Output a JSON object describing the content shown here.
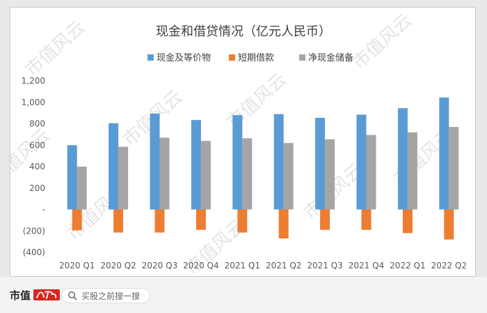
{
  "chart_data": {
    "type": "bar",
    "title": "现金和借贷情况（亿元人民币）",
    "categories": [
      "2020 Q1",
      "2020 Q2",
      "2020 Q3",
      "2020 Q4",
      "2021 Q1",
      "2021 Q2",
      "2021 Q3",
      "2021 Q4",
      "2022 Q1",
      "2022 Q2"
    ],
    "series": [
      {
        "name": "现金及等价物",
        "color": "#5b9bd5",
        "values": [
          600,
          805,
          895,
          835,
          880,
          890,
          855,
          885,
          945,
          1045
        ]
      },
      {
        "name": "短期借款",
        "color": "#ed7d31",
        "values": [
          -195,
          -215,
          -215,
          -190,
          -215,
          -270,
          -190,
          -190,
          -220,
          -280
        ]
      },
      {
        "name": "净现金储备",
        "color": "#a5a5a5",
        "values": [
          400,
          585,
          670,
          640,
          665,
          620,
          655,
          695,
          720,
          770
        ]
      }
    ],
    "yticks": [
      "1,200",
      "1,000",
      "800",
      "600",
      "400",
      "200",
      "-",
      "(200)",
      "(400)"
    ],
    "ylim": [
      -400,
      1200
    ],
    "legend_position": "top",
    "grid": false
  },
  "watermark": "市值风云",
  "footer": {
    "brand": "市值",
    "logo_text": "风云",
    "search_placeholder": "买股之前搜一搜"
  }
}
